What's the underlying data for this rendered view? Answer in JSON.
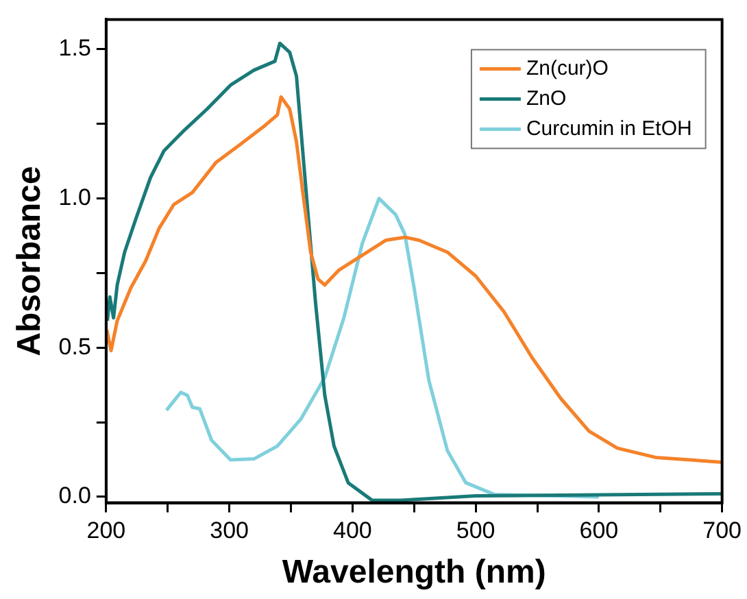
{
  "chart_data": {
    "type": "line",
    "xlabel": "Wavelength (nm)",
    "ylabel": "Absorbance",
    "xlim": [
      200,
      700
    ],
    "ylim": [
      -0.02,
      1.6
    ],
    "xticks": [
      200,
      {
        "value": 250,
        "label": null
      },
      300,
      {
        "value": 350,
        "label": null
      },
      400,
      {
        "value": 450,
        "label": null
      },
      500,
      {
        "value": 550,
        "label": null
      },
      600,
      {
        "value": 650,
        "label": null
      },
      700
    ],
    "yticks": [
      {
        "value": 0,
        "label": "0.0"
      },
      {
        "value": 0.25,
        "label": null
      },
      0.5,
      {
        "value": 0.75,
        "label": null
      },
      {
        "value": 1,
        "label": "1.0"
      },
      {
        "value": 1.25,
        "label": null
      },
      1.5
    ],
    "grid": false,
    "legend": "top right",
    "marker": "none",
    "line_style": "solid",
    "series": [
      {
        "name": "Zn(cur)O",
        "color": "#f5822a",
        "x": [
          200.5,
          204,
          209,
          220,
          232,
          243,
          255,
          270,
          289,
          308.5,
          327.6,
          339,
          342,
          349,
          354.5,
          360,
          366,
          372,
          377.5,
          389,
          408,
          427,
          442.5,
          454,
          477,
          500,
          523,
          546,
          569,
          592,
          615,
          646,
          700
        ],
        "values": [
          0.56,
          0.49,
          0.59,
          0.7,
          0.79,
          0.9,
          0.98,
          1.02,
          1.12,
          1.18,
          1.24,
          1.28,
          1.34,
          1.3,
          1.19,
          1.01,
          0.82,
          0.73,
          0.71,
          0.76,
          0.81,
          0.86,
          0.87,
          0.86,
          0.82,
          0.74,
          0.62,
          0.465,
          0.33,
          0.22,
          0.163,
          0.132,
          0.116
        ]
      },
      {
        "name": "ZnO",
        "color": "#1a7a78",
        "x": [
          201,
          203,
          206,
          209,
          215,
          224,
          236,
          247,
          262.5,
          282,
          301,
          320,
          337,
          341,
          349,
          354.5,
          362,
          370,
          377.5,
          385,
          396.5,
          416,
          439,
          500,
          700
        ],
        "values": [
          0.59,
          0.67,
          0.6,
          0.71,
          0.82,
          0.93,
          1.07,
          1.16,
          1.225,
          1.3,
          1.38,
          1.43,
          1.46,
          1.52,
          1.49,
          1.41,
          1.04,
          0.65,
          0.34,
          0.17,
          0.047,
          -0.012,
          -0.012,
          0.003,
          0.01
        ]
      },
      {
        "name": "Curcumin in EtOH",
        "color": "#7fd0dc",
        "x": [
          249,
          260.6,
          266,
          270,
          276,
          285.5,
          301,
          320,
          339,
          358,
          377.5,
          393,
          408,
          421.5,
          435,
          442.5,
          450,
          462,
          477,
          492,
          515,
          600
        ],
        "values": [
          0.29,
          0.35,
          0.34,
          0.3,
          0.295,
          0.19,
          0.124,
          0.127,
          0.17,
          0.26,
          0.4,
          0.6,
          0.85,
          1.0,
          0.946,
          0.88,
          0.7,
          0.39,
          0.155,
          0.047,
          0.008,
          0.0
        ]
      }
    ]
  }
}
